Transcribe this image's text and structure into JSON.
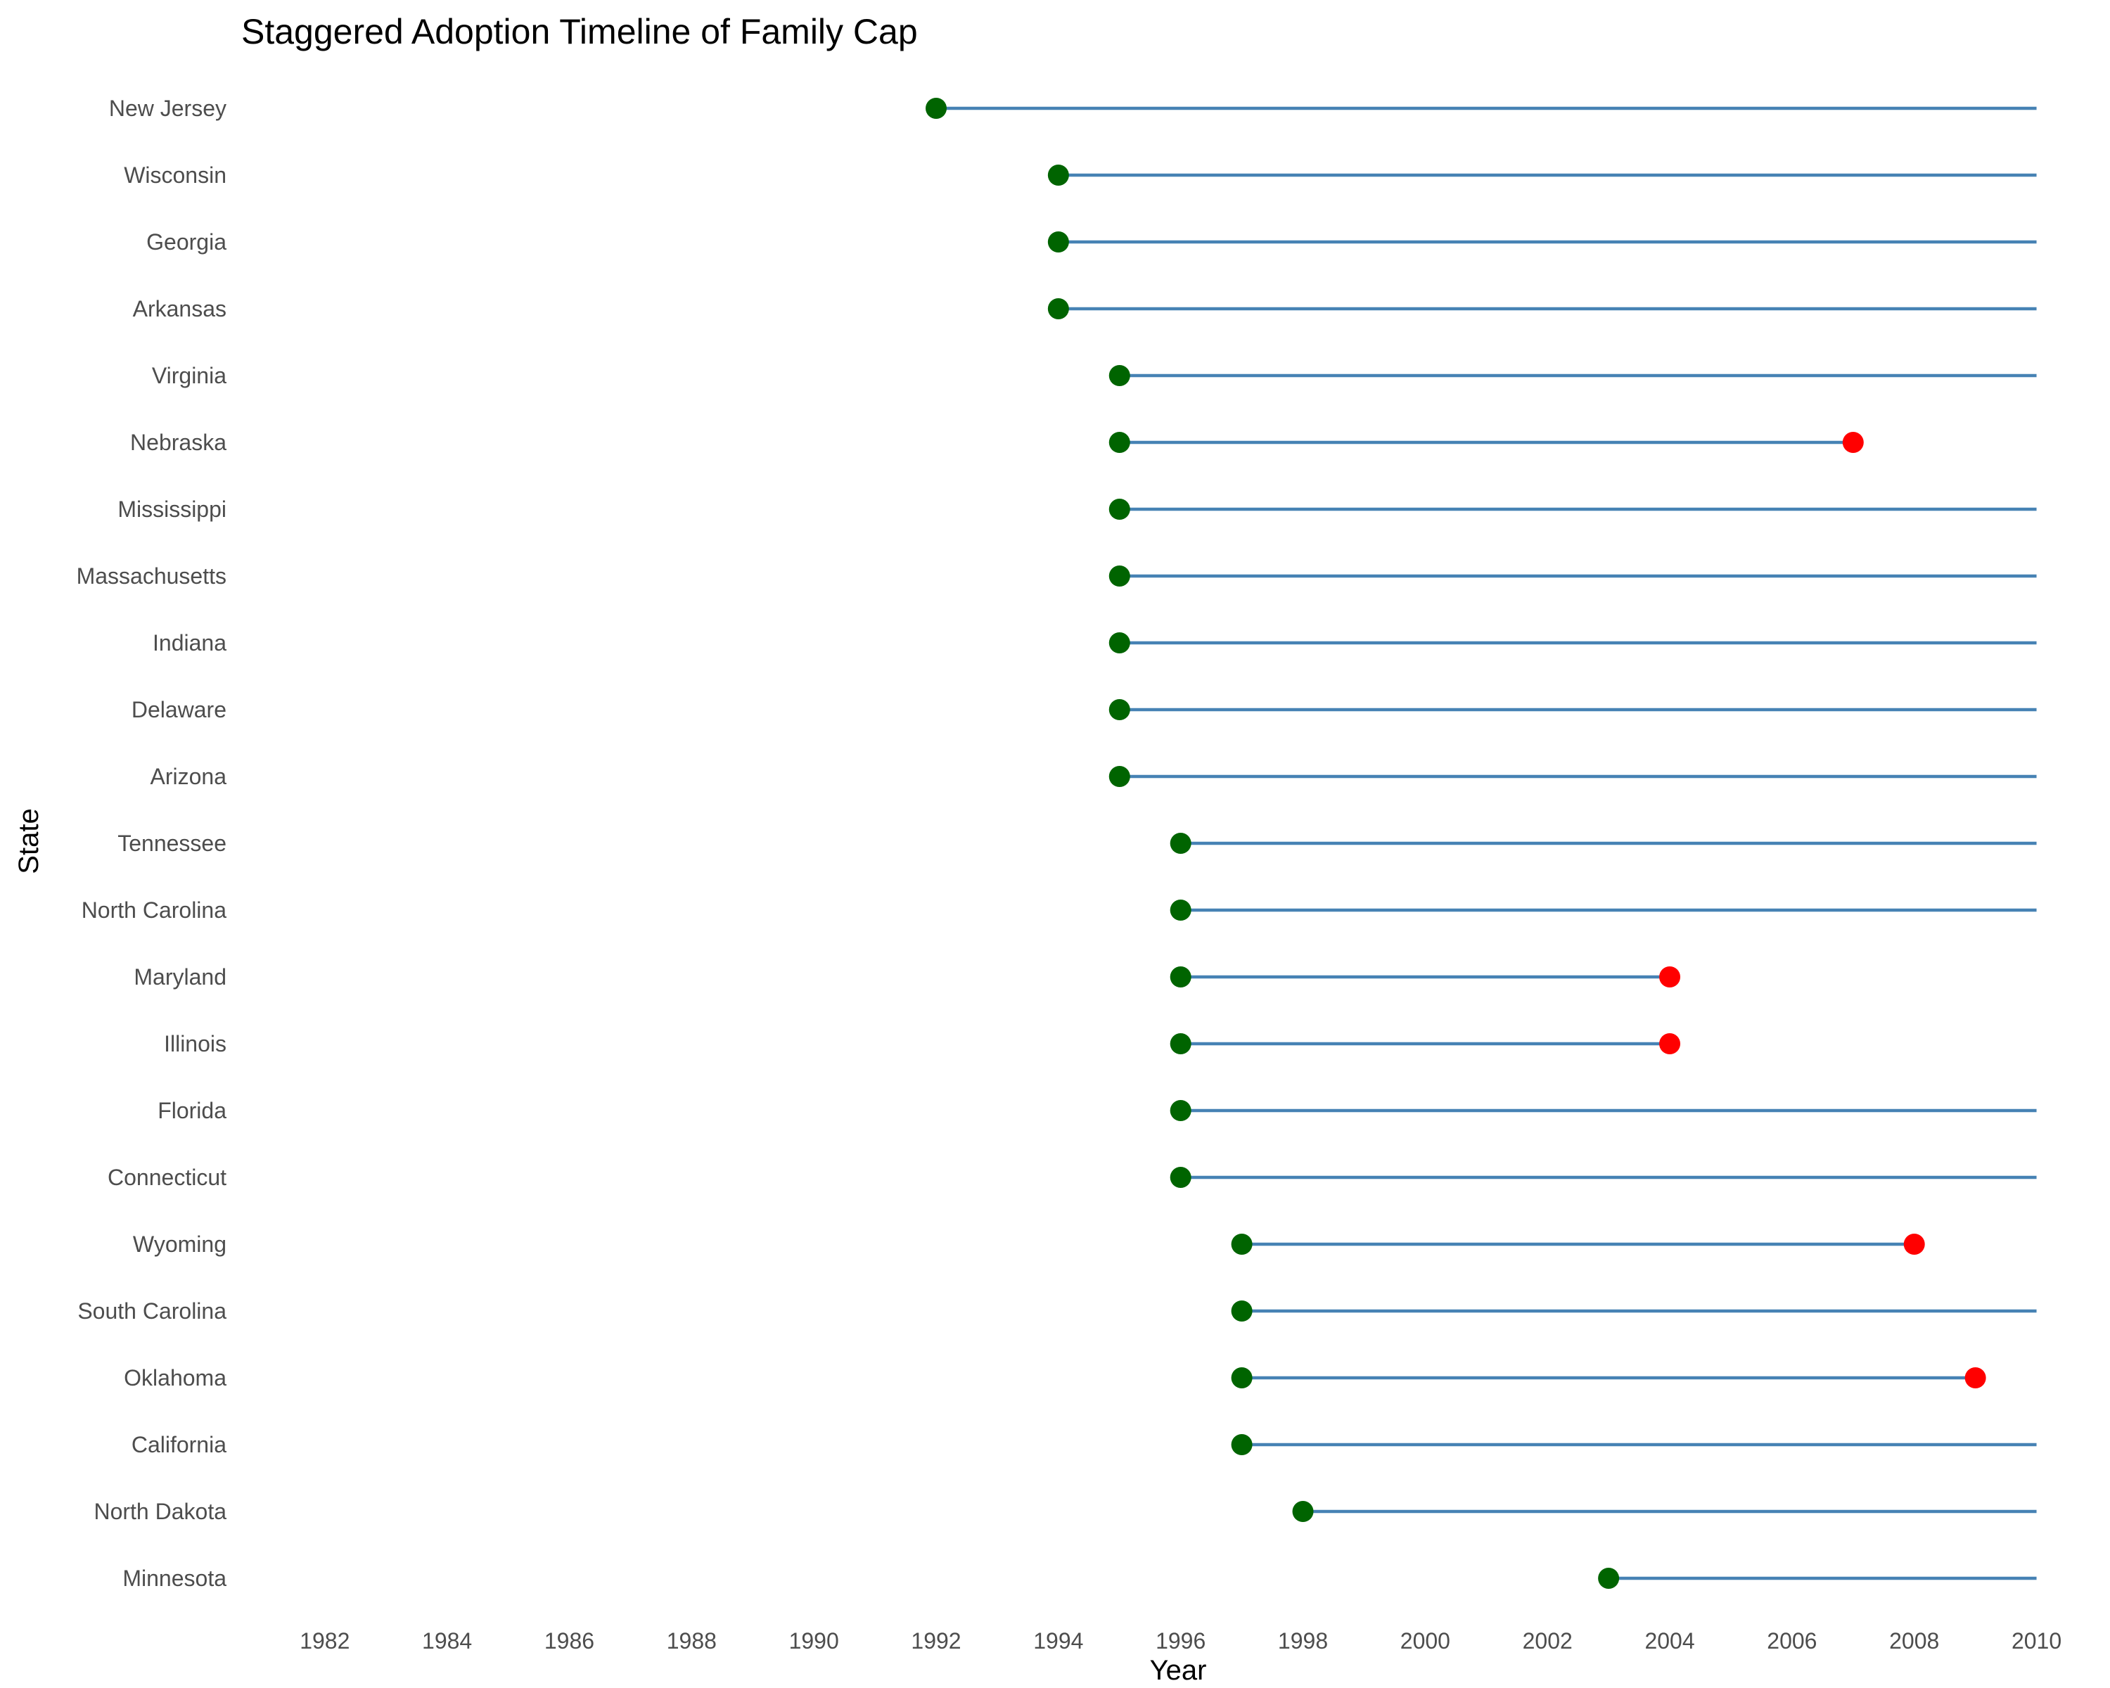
{
  "chart_data": {
    "type": "timeline",
    "title": "Staggered Adoption Timeline of Family Cap",
    "xlabel": "Year",
    "ylabel": "State",
    "xlim": [
      1980.6,
      2010
    ],
    "xticks": [
      1982,
      1984,
      1986,
      1988,
      1990,
      1992,
      1994,
      1996,
      1998,
      2000,
      2002,
      2004,
      2006,
      2008,
      2010
    ],
    "grid": false,
    "legend": "none",
    "colors": {
      "line": "#4682B4",
      "adoption_point": "#006400",
      "repeal_point": "#FF0000"
    },
    "rows": [
      {
        "state": "New Jersey",
        "start": 1992,
        "end": 2010,
        "repealed": false
      },
      {
        "state": "Wisconsin",
        "start": 1994,
        "end": 2010,
        "repealed": false
      },
      {
        "state": "Georgia",
        "start": 1994,
        "end": 2010,
        "repealed": false
      },
      {
        "state": "Arkansas",
        "start": 1994,
        "end": 2010,
        "repealed": false
      },
      {
        "state": "Virginia",
        "start": 1995,
        "end": 2010,
        "repealed": false
      },
      {
        "state": "Nebraska",
        "start": 1995,
        "end": 2007,
        "repealed": true
      },
      {
        "state": "Mississippi",
        "start": 1995,
        "end": 2010,
        "repealed": false
      },
      {
        "state": "Massachusetts",
        "start": 1995,
        "end": 2010,
        "repealed": false
      },
      {
        "state": "Indiana",
        "start": 1995,
        "end": 2010,
        "repealed": false
      },
      {
        "state": "Delaware",
        "start": 1995,
        "end": 2010,
        "repealed": false
      },
      {
        "state": "Arizona",
        "start": 1995,
        "end": 2010,
        "repealed": false
      },
      {
        "state": "Tennessee",
        "start": 1996,
        "end": 2010,
        "repealed": false
      },
      {
        "state": "North Carolina",
        "start": 1996,
        "end": 2010,
        "repealed": false
      },
      {
        "state": "Maryland",
        "start": 1996,
        "end": 2004,
        "repealed": true
      },
      {
        "state": "Illinois",
        "start": 1996,
        "end": 2004,
        "repealed": true
      },
      {
        "state": "Florida",
        "start": 1996,
        "end": 2010,
        "repealed": false
      },
      {
        "state": "Connecticut",
        "start": 1996,
        "end": 2010,
        "repealed": false
      },
      {
        "state": "Wyoming",
        "start": 1997,
        "end": 2008,
        "repealed": true
      },
      {
        "state": "South Carolina",
        "start": 1997,
        "end": 2010,
        "repealed": false
      },
      {
        "state": "Oklahoma",
        "start": 1997,
        "end": 2009,
        "repealed": true
      },
      {
        "state": "California",
        "start": 1997,
        "end": 2010,
        "repealed": false
      },
      {
        "state": "North Dakota",
        "start": 1998,
        "end": 2010,
        "repealed": false
      },
      {
        "state": "Minnesota",
        "start": 2003,
        "end": 2010,
        "repealed": false
      }
    ]
  }
}
